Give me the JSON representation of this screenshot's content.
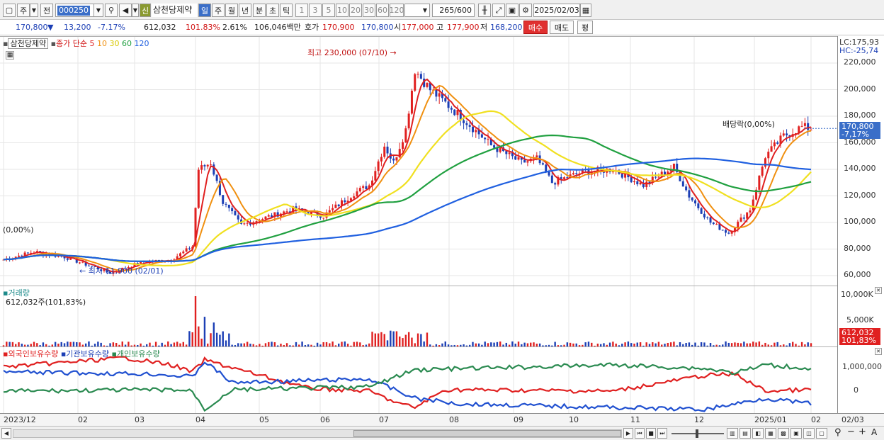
{
  "toolbar": {
    "type": "주",
    "prev": "전",
    "code": "000250",
    "sin_label": "신",
    "name": "삼천당제약",
    "periods": [
      "일",
      "주",
      "월",
      "년",
      "분",
      "초",
      "틱"
    ],
    "nums": [
      "1",
      "3",
      "5",
      "10",
      "20",
      "30",
      "60",
      "120"
    ],
    "count": "265",
    "total": "/600",
    "date": "2025/02/03"
  },
  "quote": {
    "price": "170,800",
    "arrow": "▼",
    "change": "13,200",
    "rate": "-7.17%",
    "volume": "612,032",
    "vol_rate": "101.83%",
    "turnover": "2.61%",
    "amount": "106,046백만",
    "ask_label": "호가",
    "ask": "170,900",
    "bid": "170,800",
    "open_label": "시",
    "open": "177,000",
    "high_label": "고",
    "high": "177,900",
    "low_label": "저",
    "low": "168,200",
    "buy": "매수",
    "sell": "매도",
    "eval": "평"
  },
  "price_pane": {
    "title": "삼천당제약",
    "indicator": "종가 단순",
    "ma": [
      {
        "n": "5",
        "color": "#e02020"
      },
      {
        "n": "10",
        "color": "#f09010"
      },
      {
        "n": "30",
        "color": "#f0e020"
      },
      {
        "n": "60",
        "color": "#20a040"
      },
      {
        "n": "120",
        "color": "#2060e0"
      }
    ],
    "high_note": "최고 230,000 (07/10)",
    "low_note": "최저 61,900 (02/01)",
    "left_note": "(0,00%)",
    "div_note": "배당락(0,00%)",
    "lc": "LC:175,93",
    "hc": "HC:-25,74",
    "current": "170,800",
    "current_rate": "-7,17%",
    "yticks": [
      "220,000",
      "200,000",
      "180,000",
      "160,000",
      "140,000",
      "120,000",
      "100,000",
      "80,000",
      "60,000"
    ]
  },
  "volume_pane": {
    "title": "거래량",
    "value": "612,032주(101,83%)",
    "yticks": [
      "10,000K",
      "5,000K"
    ],
    "current": "612,032",
    "current_rate": "101,83%"
  },
  "holding_pane": {
    "series": [
      "외국인보유수량",
      "기관보유수량",
      "개인보유수량"
    ],
    "yticks": [
      "1,000,000",
      "0"
    ]
  },
  "xaxis": {
    "labels": [
      "2023/12",
      "02",
      "03",
      "04",
      "05",
      "06",
      "07",
      "08",
      "09",
      "10",
      "11",
      "12",
      "2025/01",
      "02"
    ],
    "right": "02/03"
  },
  "colors": {
    "up": "#e02020",
    "down": "#1c3fb5",
    "accent": "#3a6ec8"
  }
}
